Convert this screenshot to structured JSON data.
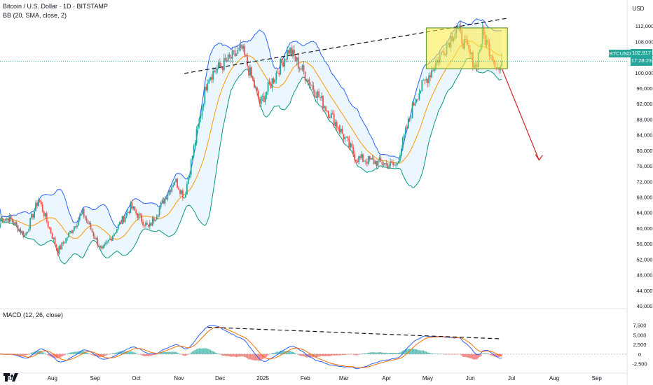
{
  "header": {
    "title": "Bitcoin / U.S. Dollar · 1D · BITSTAMP",
    "bb_legend": "BB (20, SMA, close, 2)",
    "macd_legend": "MACD (12, 26, close)"
  },
  "price_scale": {
    "currency": "USD",
    "ticks": [
      "112,000",
      "108,000",
      "104,000",
      "100,000",
      "96,000",
      "92,000",
      "88,000",
      "84,000",
      "80,000",
      "76,000",
      "72,000",
      "68,000",
      "64,000",
      "60,000",
      "56,000",
      "52,000",
      "48,000",
      "44,000",
      "40,000"
    ]
  },
  "macd_scale": {
    "ticks": [
      "7,500",
      "5,000",
      "2,500",
      "0",
      "-2,500"
    ]
  },
  "time_axis": {
    "labels": [
      "Jul",
      "Aug",
      "Sep",
      "Oct",
      "Nov",
      "Dec",
      "2025",
      "Feb",
      "Mar",
      "Apr",
      "May",
      "Jun",
      "Jul",
      "Aug",
      "Sep"
    ]
  },
  "last_price": {
    "symbol": "BTCUSD",
    "value": "102,917",
    "countdown": "17:28:23"
  },
  "colors": {
    "up": "#26a69a",
    "down": "#ef5350",
    "band_upper": "#2962ff",
    "band_lower": "#089981",
    "band_fill": "#e3f2fd",
    "basis": "#ff9800",
    "highlight": "#ffeb3b",
    "arrow": "#d32f2f"
  },
  "chart_data": {
    "type": "candlestick",
    "symbol": "BTCUSD",
    "timeframe": "1D",
    "approx_close_path": [
      {
        "date": "2024-07-01",
        "close": 62500
      },
      {
        "date": "2024-07-12",
        "close": 58000
      },
      {
        "date": "2024-07-22",
        "close": 67500
      },
      {
        "date": "2024-08-05",
        "close": 54000
      },
      {
        "date": "2024-08-23",
        "close": 64000
      },
      {
        "date": "2024-09-06",
        "close": 54000
      },
      {
        "date": "2024-09-27",
        "close": 65500
      },
      {
        "date": "2024-10-10",
        "close": 60000
      },
      {
        "date": "2024-10-29",
        "close": 72500
      },
      {
        "date": "2024-11-05",
        "close": 68000
      },
      {
        "date": "2024-11-22",
        "close": 99000
      },
      {
        "date": "2024-12-17",
        "close": 106000
      },
      {
        "date": "2024-12-30",
        "close": 92000
      },
      {
        "date": "2025-01-20",
        "close": 106000
      },
      {
        "date": "2025-02-25",
        "close": 86000
      },
      {
        "date": "2025-03-10",
        "close": 78000
      },
      {
        "date": "2025-04-08",
        "close": 76000
      },
      {
        "date": "2025-04-22",
        "close": 93500
      },
      {
        "date": "2025-05-22",
        "close": 111500
      },
      {
        "date": "2025-06-05",
        "close": 101500
      },
      {
        "date": "2025-06-10",
        "close": 110000
      },
      {
        "date": "2025-06-22",
        "close": 100500
      },
      {
        "date": "2025-06-24",
        "close": 102917
      }
    ],
    "ylim": [
      40000,
      114000
    ],
    "macd_ylim": [
      -3500,
      8000
    ]
  }
}
